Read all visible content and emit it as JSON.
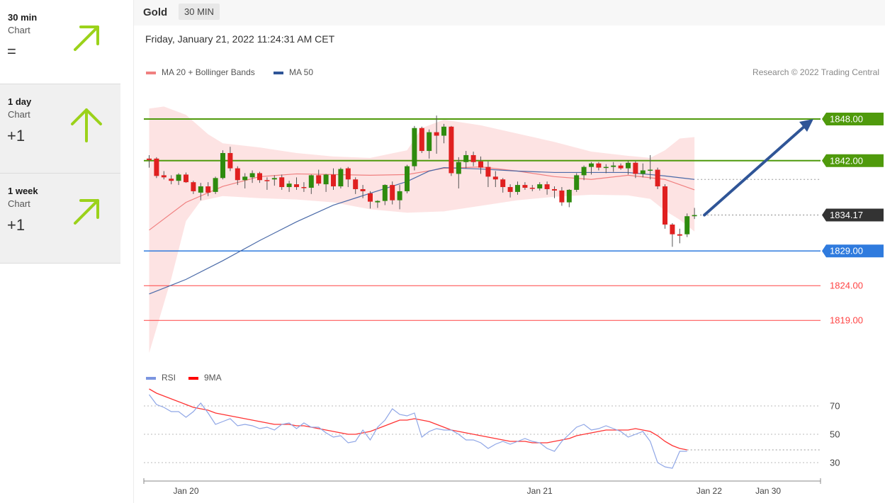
{
  "sidebar": {
    "panels": [
      {
        "title": "30 min",
        "sub": "Chart",
        "value": "=",
        "icon": "arrow-up-right-icon"
      },
      {
        "title": "1 day",
        "sub": "Chart",
        "value": "+1",
        "icon": "arrow-up-icon"
      },
      {
        "title": "1 week",
        "sub": "Chart",
        "value": "+1",
        "icon": "arrow-up-right-icon"
      }
    ],
    "icon_color": "#9bd21a"
  },
  "header": {
    "symbol": "Gold",
    "timeframe": "30 MIN",
    "datetime": "Friday, January 21, 2022 11:24:31 AM CET",
    "copyright": "Research © 2022 Trading Central"
  },
  "legend": {
    "ma20": {
      "label": "MA 20 + Bollinger Bands",
      "color": "#f08080"
    },
    "ma50": {
      "label": "MA 50",
      "color": "#2f5597"
    },
    "rsi": {
      "label": "RSI",
      "color": "#7b95e0"
    },
    "ma9": {
      "label": "9MA",
      "color": "#ff0000"
    }
  },
  "chart_data": [
    {
      "type": "candlestick",
      "title": "Gold",
      "ylim": [
        1815,
        1852
      ],
      "levels": [
        {
          "value": 1848.0,
          "label": "1848.00",
          "kind": "resistance",
          "color": "#4f9a0c"
        },
        {
          "value": 1842.0,
          "label": "1842.00",
          "kind": "resistance",
          "color": "#4f9a0c"
        },
        {
          "value": 1834.17,
          "label": "1834.17",
          "kind": "last",
          "color": "#333333"
        },
        {
          "value": 1829.0,
          "label": "1829.00",
          "kind": "pivot",
          "color": "#2f7bde"
        },
        {
          "value": 1824.0,
          "label": "1824.00",
          "kind": "support",
          "color": "#ff4444"
        },
        {
          "value": 1819.0,
          "label": "1819.00",
          "kind": "support",
          "color": "#ff4444"
        }
      ],
      "forecast": {
        "from": 1834.17,
        "to": 1848.0,
        "direction": "up"
      },
      "candles": [
        [
          1842.3,
          1842.8,
          1841.0,
          1842.1
        ],
        [
          1842.3,
          1842.5,
          1839.5,
          1839.8
        ],
        [
          1839.9,
          1840.5,
          1839.3,
          1839.6
        ],
        [
          1839.4,
          1839.9,
          1838.6,
          1839.1
        ],
        [
          1839.1,
          1840.2,
          1838.5,
          1840.0
        ],
        [
          1840.0,
          1840.3,
          1838.8,
          1838.9
        ],
        [
          1838.9,
          1839.1,
          1837.2,
          1837.6
        ],
        [
          1837.4,
          1838.8,
          1836.3,
          1838.3
        ],
        [
          1838.3,
          1838.9,
          1836.9,
          1837.4
        ],
        [
          1837.5,
          1839.7,
          1837.2,
          1839.5
        ],
        [
          1839.5,
          1843.5,
          1839.3,
          1843.1
        ],
        [
          1843.1,
          1844.0,
          1840.5,
          1840.9
        ],
        [
          1840.9,
          1841.2,
          1838.5,
          1839.2
        ],
        [
          1839.2,
          1840.2,
          1838.0,
          1839.7
        ],
        [
          1839.6,
          1840.6,
          1838.8,
          1840.2
        ],
        [
          1840.2,
          1840.4,
          1838.8,
          1839.2
        ],
        [
          1839.2,
          1839.6,
          1837.8,
          1839.1
        ],
        [
          1839.3,
          1839.9,
          1838.4,
          1839.5
        ],
        [
          1839.6,
          1840.0,
          1837.8,
          1838.2
        ],
        [
          1838.2,
          1839.1,
          1837.5,
          1838.7
        ],
        [
          1838.6,
          1839.6,
          1837.8,
          1838.2
        ],
        [
          1838.2,
          1838.9,
          1837.5,
          1838.1
        ],
        [
          1838.1,
          1840.0,
          1837.2,
          1839.9
        ],
        [
          1839.9,
          1840.7,
          1838.4,
          1838.7
        ],
        [
          1838.6,
          1840.1,
          1837.5,
          1840.0
        ],
        [
          1840.0,
          1840.9,
          1837.8,
          1838.3
        ],
        [
          1838.3,
          1841.0,
          1838.0,
          1840.8
        ],
        [
          1840.9,
          1841.1,
          1838.2,
          1839.3
        ],
        [
          1839.3,
          1839.6,
          1837.2,
          1837.9
        ],
        [
          1837.9,
          1838.5,
          1836.6,
          1837.6
        ],
        [
          1837.3,
          1837.6,
          1835.1,
          1836.1
        ],
        [
          1836.0,
          1836.3,
          1835.2,
          1836.2
        ],
        [
          1836.2,
          1838.6,
          1835.6,
          1838.5
        ],
        [
          1838.5,
          1839.0,
          1835.7,
          1836.3
        ],
        [
          1836.3,
          1838.5,
          1835.0,
          1837.6
        ],
        [
          1837.6,
          1841.4,
          1837.3,
          1841.2
        ],
        [
          1841.2,
          1847.0,
          1840.6,
          1846.7
        ],
        [
          1846.7,
          1846.9,
          1843.1,
          1843.4
        ],
        [
          1843.4,
          1846.5,
          1842.3,
          1846.1
        ],
        [
          1846.1,
          1848.5,
          1843.0,
          1845.6
        ],
        [
          1845.6,
          1847.3,
          1844.5,
          1846.9
        ],
        [
          1846.9,
          1847.0,
          1839.8,
          1840.2
        ],
        [
          1840.1,
          1842.5,
          1838.0,
          1841.8
        ],
        [
          1841.8,
          1843.4,
          1840.9,
          1842.8
        ],
        [
          1842.8,
          1843.3,
          1841.2,
          1841.8
        ],
        [
          1841.9,
          1842.6,
          1840.1,
          1841.0
        ],
        [
          1841.1,
          1841.9,
          1838.2,
          1839.7
        ],
        [
          1839.7,
          1840.5,
          1838.2,
          1839.3
        ],
        [
          1839.3,
          1839.5,
          1837.4,
          1838.2
        ],
        [
          1838.2,
          1838.6,
          1836.7,
          1837.5
        ],
        [
          1837.5,
          1839.0,
          1837.1,
          1838.5
        ],
        [
          1838.5,
          1838.9,
          1837.8,
          1838.1
        ],
        [
          1838.1,
          1838.5,
          1837.6,
          1838.0
        ],
        [
          1838.0,
          1838.9,
          1837.7,
          1838.6
        ],
        [
          1838.6,
          1839.0,
          1837.1,
          1837.9
        ],
        [
          1837.9,
          1838.3,
          1836.6,
          1837.7
        ],
        [
          1837.7,
          1838.2,
          1835.5,
          1836.0
        ],
        [
          1836.0,
          1837.9,
          1835.3,
          1837.8
        ],
        [
          1837.8,
          1840.2,
          1837.5,
          1839.9
        ],
        [
          1839.9,
          1841.3,
          1839.2,
          1841.1
        ],
        [
          1841.1,
          1841.8,
          1840.0,
          1841.6
        ],
        [
          1841.6,
          1841.8,
          1840.6,
          1841.0
        ],
        [
          1841.0,
          1841.5,
          1840.2,
          1841.1
        ],
        [
          1841.1,
          1841.8,
          1840.4,
          1841.3
        ],
        [
          1841.3,
          1841.6,
          1840.7,
          1840.9
        ],
        [
          1840.9,
          1842.0,
          1840.0,
          1841.7
        ],
        [
          1841.7,
          1841.9,
          1839.5,
          1840.1
        ],
        [
          1840.1,
          1841.6,
          1839.6,
          1840.6
        ],
        [
          1840.6,
          1842.8,
          1839.3,
          1840.7
        ],
        [
          1840.7,
          1841.0,
          1837.9,
          1838.3
        ],
        [
          1838.3,
          1838.6,
          1832.2,
          1832.8
        ],
        [
          1832.8,
          1833.0,
          1829.6,
          1831.4
        ],
        [
          1831.4,
          1832.2,
          1830.1,
          1831.2
        ],
        [
          1831.4,
          1834.4,
          1831.0,
          1834.0
        ],
        [
          1834.0,
          1835.2,
          1833.6,
          1834.17
        ]
      ],
      "ma20": [
        [
          0,
          1832.0
        ],
        [
          5,
          1836.0
        ],
        [
          10,
          1838.3
        ],
        [
          15,
          1839.7
        ],
        [
          20,
          1840.1
        ],
        [
          25,
          1840.0
        ],
        [
          30,
          1839.9
        ],
        [
          35,
          1840.0
        ],
        [
          40,
          1840.9
        ],
        [
          45,
          1841.1
        ],
        [
          50,
          1840.5
        ],
        [
          55,
          1839.7
        ],
        [
          60,
          1839.3
        ],
        [
          65,
          1839.9
        ],
        [
          70,
          1839.3
        ],
        [
          74,
          1837.8
        ]
      ],
      "bb_upper": [
        [
          0,
          1849.5
        ],
        [
          2,
          1849.8
        ],
        [
          5,
          1848.6
        ],
        [
          8,
          1845.8
        ],
        [
          10,
          1844.5
        ],
        [
          15,
          1843.9
        ],
        [
          20,
          1843.1
        ],
        [
          25,
          1842.6
        ],
        [
          30,
          1842.4
        ],
        [
          35,
          1843.5
        ],
        [
          37,
          1846.7
        ],
        [
          40,
          1847.9
        ],
        [
          45,
          1847.1
        ],
        [
          50,
          1845.9
        ],
        [
          55,
          1844.7
        ],
        [
          60,
          1843.3
        ],
        [
          65,
          1842.7
        ],
        [
          68,
          1842.4
        ],
        [
          70,
          1843.5
        ],
        [
          72,
          1845.2
        ],
        [
          74,
          1845.4
        ]
      ],
      "bb_lower": [
        [
          0,
          1814.3
        ],
        [
          3,
          1825.0
        ],
        [
          5,
          1833.3
        ],
        [
          7,
          1836.2
        ],
        [
          10,
          1836.9
        ],
        [
          15,
          1836.6
        ],
        [
          20,
          1836.4
        ],
        [
          25,
          1836.0
        ],
        [
          30,
          1835.0
        ],
        [
          35,
          1834.5
        ],
        [
          40,
          1834.7
        ],
        [
          45,
          1835.5
        ],
        [
          50,
          1836.3
        ],
        [
          55,
          1836.8
        ],
        [
          60,
          1837.1
        ],
        [
          65,
          1837.0
        ],
        [
          68,
          1836.5
        ],
        [
          70,
          1834.8
        ],
        [
          72,
          1833.5
        ],
        [
          74,
          1831.8
        ]
      ],
      "ma50": [
        [
          0,
          1822.8
        ],
        [
          5,
          1824.9
        ],
        [
          10,
          1827.6
        ],
        [
          15,
          1830.5
        ],
        [
          20,
          1833.2
        ],
        [
          25,
          1835.6
        ],
        [
          30,
          1837.3
        ],
        [
          35,
          1839.0
        ],
        [
          38,
          1840.5
        ],
        [
          40,
          1841.0
        ],
        [
          45,
          1840.8
        ],
        [
          50,
          1840.5
        ],
        [
          55,
          1840.3
        ],
        [
          60,
          1840.3
        ],
        [
          65,
          1840.3
        ],
        [
          70,
          1839.8
        ],
        [
          74,
          1839.3
        ]
      ],
      "x_labels": [
        {
          "index": 5,
          "label": "Jan 20"
        },
        {
          "index": 53,
          "label": "Jan 21"
        },
        {
          "index": 76,
          "label": "Jan 22"
        },
        {
          "index": 84,
          "label": "Jan 30"
        }
      ]
    },
    {
      "type": "line",
      "title": "RSI",
      "ylim": [
        18,
        90
      ],
      "y_ticks": [
        30,
        50,
        70
      ],
      "rsi": [
        78,
        71,
        69,
        66,
        66,
        62,
        66,
        72,
        65,
        57,
        59,
        61,
        56,
        57,
        56,
        54,
        55,
        53,
        57,
        58,
        54,
        58,
        55,
        55,
        51,
        48,
        49,
        44,
        45,
        53,
        46,
        55,
        60,
        68,
        64,
        63,
        65,
        48,
        52,
        54,
        53,
        53,
        50,
        46,
        46,
        44,
        40,
        43,
        45,
        43,
        45,
        47,
        45,
        44,
        40,
        38,
        45,
        50,
        55,
        57,
        53,
        54,
        56,
        54,
        52,
        48,
        50,
        52,
        45,
        30,
        27,
        26,
        38,
        38
      ],
      "ma9": [
        82,
        79,
        77,
        75,
        73,
        71,
        69,
        68,
        67,
        65,
        64,
        63,
        62,
        61,
        60,
        59,
        58,
        57,
        57,
        57,
        56,
        56,
        55,
        54,
        53,
        52,
        51,
        50,
        50,
        51,
        52,
        54,
        56,
        58,
        60,
        60,
        61,
        60,
        59,
        57,
        55,
        53,
        52,
        51,
        50,
        49,
        48,
        47,
        46,
        45,
        45,
        45,
        44,
        44,
        44,
        45,
        46,
        47,
        49,
        50,
        51,
        52,
        53,
        53,
        53,
        53,
        54,
        53,
        52,
        49,
        45,
        42,
        40,
        39
      ]
    }
  ]
}
